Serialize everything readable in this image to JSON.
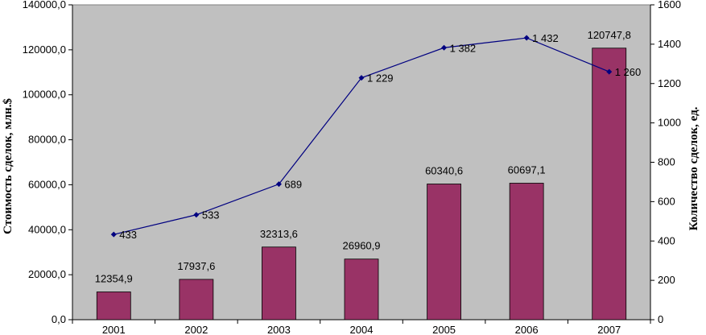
{
  "chart_data": {
    "type": "bar+line",
    "categories": [
      "2001",
      "2002",
      "2003",
      "2004",
      "2005",
      "2006",
      "2007"
    ],
    "series": [
      {
        "type": "bar",
        "axis": "left",
        "values": [
          12354.9,
          17937.6,
          32313.6,
          26960.9,
          60340.6,
          60697.1,
          120747.8
        ],
        "value_labels": [
          "12354,9",
          "17937,6",
          "32313,6",
          "26960,9",
          "60340,6",
          "60697,1",
          "120747,8"
        ],
        "color": "#993366"
      },
      {
        "type": "line",
        "axis": "right",
        "values": [
          433,
          533,
          689,
          1229,
          1382,
          1432,
          1260
        ],
        "value_labels": [
          "433",
          "533",
          "689",
          "1 229",
          "1 382",
          "1 432",
          "1 260"
        ],
        "color": "#000080"
      }
    ],
    "ylabel_left": "Стоимость сделок, млн.$",
    "ylabel_right": "Количество сделок, ед.",
    "ylim_left": [
      0,
      140000
    ],
    "ylim_right": [
      0,
      1600
    ],
    "yticks_left": [
      "0,0",
      "20000,0",
      "40000,0",
      "60000,0",
      "80000,0",
      "100000,0",
      "120000,0",
      "140000,0"
    ],
    "yticks_right": [
      "0",
      "200",
      "400",
      "600",
      "800",
      "1000",
      "1200",
      "1400",
      "1600"
    ],
    "plot_background": "#c0c0c0",
    "grid": false,
    "legend": "none"
  }
}
